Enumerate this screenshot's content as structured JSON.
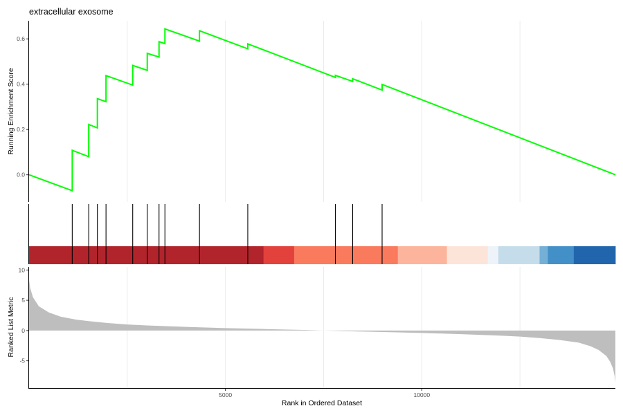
{
  "chart_data": {
    "type": "line",
    "title": "extracellular exosome",
    "top_panel": {
      "ylabel": "Running Enrichment Score",
      "ylim": [
        -0.12,
        0.68
      ],
      "yticks": [
        0.0,
        0.2,
        0.4,
        0.6
      ],
      "ytick_labels": [
        "0.0",
        "0.2",
        "0.4",
        "0.6"
      ],
      "line_color": "#00ff00",
      "series": {
        "x": [
          1,
          1100,
          1100,
          1520,
          1520,
          1740,
          1740,
          1960,
          1960,
          2640,
          2640,
          3010,
          3010,
          3310,
          3310,
          3460,
          3460,
          4340,
          4340,
          5570,
          5570,
          7800,
          7800,
          8240,
          8240,
          8990,
          8990,
          14930
        ],
        "y": [
          0.0,
          -0.07,
          0.108,
          0.08,
          0.222,
          0.207,
          0.336,
          0.323,
          0.438,
          0.396,
          0.483,
          0.461,
          0.536,
          0.52,
          0.588,
          0.579,
          0.644,
          0.59,
          0.636,
          0.556,
          0.578,
          0.43,
          0.439,
          0.412,
          0.424,
          0.374,
          0.399,
          0.0
        ]
      }
    },
    "gene_hits": [
      1100,
      1520,
      1740,
      1960,
      2640,
      3010,
      3310,
      3460,
      4340,
      5570,
      7800,
      8240,
      8990
    ],
    "color_band": [
      {
        "start": 1,
        "end": 5970,
        "color": "#b2242c"
      },
      {
        "start": 5970,
        "end": 6750,
        "color": "#e3413b"
      },
      {
        "start": 6750,
        "end": 9390,
        "color": "#fa7a5e"
      },
      {
        "start": 9390,
        "end": 10640,
        "color": "#fdb49c"
      },
      {
        "start": 10640,
        "end": 11680,
        "color": "#fde4d9"
      },
      {
        "start": 11680,
        "end": 11950,
        "color": "#eef3f9"
      },
      {
        "start": 11950,
        "end": 13000,
        "color": "#c5dcea"
      },
      {
        "start": 13000,
        "end": 13210,
        "color": "#74afd6"
      },
      {
        "start": 13210,
        "end": 13870,
        "color": "#4390c8"
      },
      {
        "start": 13870,
        "end": 14930,
        "color": "#2166ac"
      }
    ],
    "bottom_panel": {
      "ylabel": "Ranked List Metric",
      "xlabel": "Rank in Ordered Dataset",
      "ylim": [
        -9.5,
        10.5
      ],
      "yticks": [
        -5,
        0,
        5,
        10
      ],
      "ytick_labels": [
        "-5",
        "0",
        "5",
        "10"
      ],
      "fill_color": "#bebebe",
      "metric_profile": {
        "x": [
          1,
          30,
          100,
          250,
          500,
          800,
          1200,
          1600,
          2000,
          2500,
          3000,
          4000,
          5000,
          6000,
          7000,
          7500,
          8000,
          9000,
          10000,
          11000,
          12000,
          12500,
          13000,
          13500,
          14000,
          14300,
          14500,
          14700,
          14800,
          14870,
          14910,
          14930
        ],
        "y": [
          8.5,
          7.0,
          5.5,
          4.0,
          3.0,
          2.3,
          1.8,
          1.5,
          1.25,
          1.0,
          0.85,
          0.6,
          0.4,
          0.25,
          0.1,
          0.0,
          -0.1,
          -0.25,
          -0.4,
          -0.6,
          -0.85,
          -1.0,
          -1.25,
          -1.55,
          -2.0,
          -2.6,
          -3.2,
          -4.2,
          -5.2,
          -6.3,
          -7.5,
          -8.6
        ]
      }
    },
    "x_axis": {
      "xlim": [
        1,
        14930
      ],
      "ticks": [
        5000,
        10000
      ],
      "tick_labels": [
        "5000",
        "10000"
      ],
      "minor_gridlines": [
        2500,
        7500,
        12500
      ]
    },
    "grid_color": "#ebebeb"
  }
}
